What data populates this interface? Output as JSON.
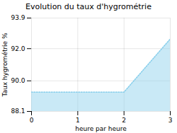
{
  "chart_data": {
    "type": "area",
    "title": "Evolution du taux d'hygrométrie",
    "xlabel": "heure par heure",
    "ylabel": "Taux hygrométrie %",
    "x": [
      0,
      2,
      3
    ],
    "values": [
      89.3,
      89.3,
      92.6
    ],
    "color": "#87CEEB",
    "line_style": "dotted",
    "xlim": [
      0,
      3
    ],
    "ylim": [
      88.1,
      93.9
    ],
    "xticks": [
      0,
      1,
      2,
      3
    ],
    "yticks": [
      88.1,
      {
        "value": 90.0,
        "label": "90.0"
      },
      {
        "value": 92.0,
        "label": "92.0"
      },
      93.9
    ],
    "grid": true
  }
}
